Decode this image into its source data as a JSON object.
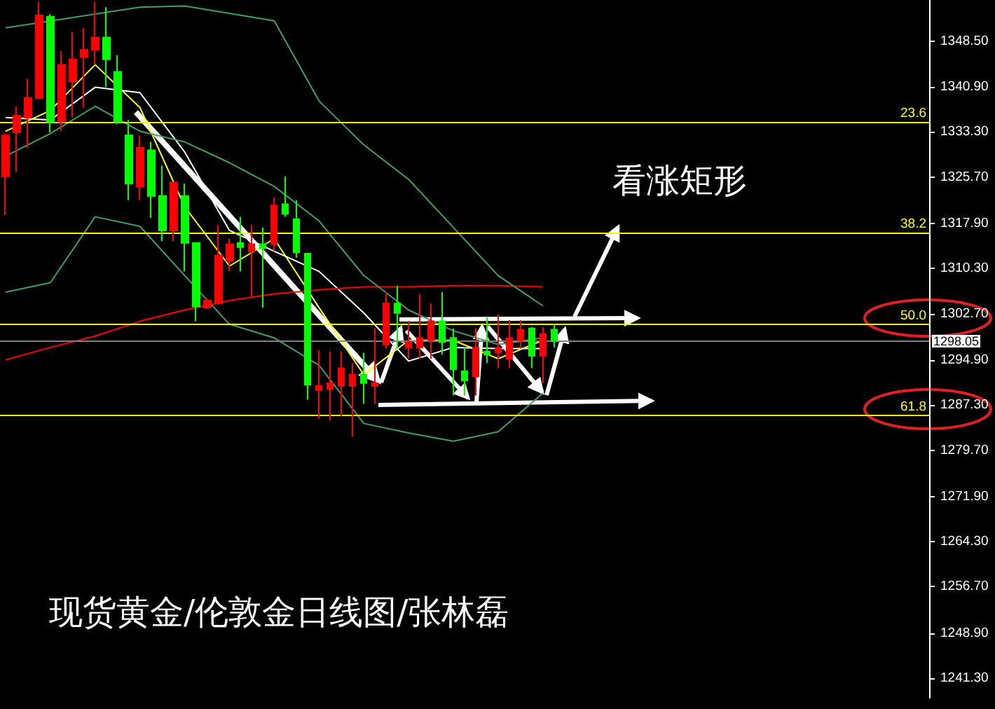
{
  "chart_data": {
    "type": "candlestick",
    "title": "现货黄金/伦敦金日线图/张林磊",
    "annotations": [
      "看涨矩形",
      {
        "text": "23.6",
        "y": 1335.0
      },
      {
        "text": "38.2",
        "y": 1316.3
      },
      {
        "text": "50.0",
        "y": 1300.9
      },
      {
        "text": "61.8",
        "y": 1285.6
      }
    ],
    "categories": [
      null,
      null,
      null,
      null,
      null,
      null,
      null,
      null,
      null,
      null,
      null,
      null,
      null,
      null,
      null,
      null,
      null,
      null,
      null,
      null,
      null,
      null,
      null,
      null,
      null,
      null,
      null,
      null,
      null,
      null,
      null,
      null,
      null,
      null,
      null,
      null,
      null,
      null,
      null,
      null,
      null,
      null,
      null,
      null,
      null,
      null,
      null,
      null,
      null,
      null,
      null,
      null,
      null,
      null,
      null,
      null,
      null,
      null,
      null,
      null,
      null,
      null,
      null,
      null,
      null,
      null,
      null,
      null,
      null,
      null,
      null,
      null,
      null,
      null,
      null,
      null,
      null,
      null,
      null,
      null,
      null,
      null,
      null
    ],
    "ohlc": [
      [
        1325.8,
        1333.0,
        1319.3,
        1332.7
      ],
      [
        1333.2,
        1337.6,
        1326.5,
        1336.0
      ],
      [
        1335.7,
        1342.2,
        1330.6,
        1339.0
      ],
      [
        1339.0,
        1355.2,
        1338.8,
        1352.9
      ],
      [
        1352.7,
        1353.1,
        1333.2,
        1335.0
      ],
      [
        1335.0,
        1346.9,
        1333.4,
        1344.6
      ],
      [
        1341.8,
        1350.1,
        1335.7,
        1345.5
      ],
      [
        1345.9,
        1350.8,
        1337.4,
        1347.1
      ],
      [
        1347.1,
        1355.2,
        1344.6,
        1349.2
      ],
      [
        1349.2,
        1354.3,
        1340.8,
        1345.5
      ],
      [
        1343.4,
        1346.2,
        1334.6,
        1335.0
      ],
      [
        1332.7,
        1335.3,
        1321.8,
        1324.6
      ],
      [
        1324.1,
        1332.7,
        1321.8,
        1330.6
      ],
      [
        1330.2,
        1331.6,
        1318.8,
        1322.5
      ],
      [
        1322.5,
        1327.6,
        1314.9,
        1316.7
      ],
      [
        1316.7,
        1324.8,
        1314.9,
        1324.8
      ],
      [
        1322.5,
        1324.6,
        1309.8,
        1314.6
      ],
      [
        1314.6,
        1314.6,
        1301.4,
        1303.9
      ],
      [
        1303.7,
        1305.1,
        1303.5,
        1304.9
      ],
      [
        1304.4,
        1317.6,
        1304.4,
        1312.5
      ],
      [
        1311.6,
        1315.3,
        1309.8,
        1314.4
      ],
      [
        1314.6,
        1319.0,
        1309.8,
        1313.9
      ],
      [
        1313.2,
        1317.6,
        1305.6,
        1314.4
      ],
      [
        1314.4,
        1317.2,
        1303.7,
        1313.7
      ],
      [
        1314.4,
        1322.3,
        1313.2,
        1320.9
      ],
      [
        1321.1,
        1325.8,
        1319.0,
        1319.5
      ],
      [
        1318.6,
        1321.8,
        1312.1,
        1313.0
      ],
      [
        1312.8,
        1312.8,
        1288.2,
        1290.7
      ],
      [
        1289.8,
        1296.5,
        1285.0,
        1290.5
      ],
      [
        1290.0,
        1296.3,
        1284.7,
        1291.0
      ],
      [
        1290.5,
        1296.3,
        1285.4,
        1293.5
      ],
      [
        1290.5,
        1294.4,
        1282.0,
        1292.4
      ],
      [
        1292.4,
        1296.1,
        1287.5,
        1291.0
      ],
      [
        1290.5,
        1300.2,
        1287.5,
        1291.0
      ],
      [
        1297.5,
        1306.3,
        1296.8,
        1304.4
      ],
      [
        1304.4,
        1307.4,
        1296.8,
        1302.8
      ],
      [
        1297.0,
        1301.4,
        1295.1,
        1297.9
      ],
      [
        1297.0,
        1306.0,
        1295.1,
        1298.6
      ],
      [
        1298.2,
        1304.4,
        1295.1,
        1301.4
      ],
      [
        1301.4,
        1306.3,
        1295.8,
        1297.9
      ],
      [
        1298.6,
        1300.2,
        1288.9,
        1293.3
      ],
      [
        1293.0,
        1297.0,
        1288.9,
        1291.4
      ],
      [
        1292.1,
        1300.2,
        1288.9,
        1297.0
      ],
      [
        1296.3,
        1302.1,
        1294.4,
        1295.8
      ],
      [
        1296.1,
        1302.6,
        1293.5,
        1296.8
      ],
      [
        1295.1,
        1301.6,
        1293.5,
        1298.6
      ],
      [
        1298.2,
        1301.6,
        1296.8,
        1300.0
      ],
      [
        1300.2,
        1300.4,
        1293.5,
        1295.6
      ],
      [
        1295.6,
        1300.4,
        1291.0,
        1299.3
      ],
      [
        1300.0,
        1300.9,
        1297.0,
        1298.1
      ],
      null,
      null,
      null,
      null,
      null,
      null,
      null,
      null,
      null,
      null,
      null,
      null,
      null,
      null,
      null,
      null,
      null,
      null,
      null,
      null,
      null,
      null,
      null,
      null,
      null,
      null,
      null,
      null,
      null,
      null,
      null,
      null,
      null
    ],
    "colors": [
      "#ff0000",
      "#ff0000",
      "#ff0000",
      "#ff0000",
      "#00ff00",
      "#ff0000",
      "#ff0000",
      "#ff0000",
      "#ff0000",
      "#00ff00",
      "#00ff00",
      "#00ff00",
      "#ff0000",
      "#00ff00",
      "#00ff00",
      "#ff0000",
      "#00ff00",
      "#00ff00",
      "#ff0000",
      "#ff0000",
      "#ff0000",
      "#00ff00",
      "#ff0000",
      "#00ff00",
      "#ff0000",
      "#00ff00",
      "#00ff00",
      "#00ff00",
      "#ff0000",
      "#ff0000",
      "#ff0000",
      "#ff0000",
      "#00ff00",
      "#ff0000",
      "#ff0000",
      "#00ff00",
      "#ff0000",
      "#ff0000",
      "#ff0000",
      "#00ff00",
      "#00ff00",
      "#00ff00",
      "#ff0000",
      "#00ff00",
      "#ff0000",
      "#ff0000",
      "#ff0000",
      "#00ff00",
      "#ff0000",
      "#00ff00",
      null,
      null,
      null,
      null,
      null,
      null,
      null,
      null,
      null,
      null,
      null,
      null,
      null,
      null,
      null,
      null,
      null,
      null,
      null,
      null,
      null,
      null,
      null,
      null,
      null,
      null,
      null,
      null,
      null,
      null,
      null,
      null,
      null
    ],
    "series": [
      {
        "type": "line",
        "color": "#ffff00",
        "values": [
          1333.4,
          null,
          null,
          null,
          1336.9,
          null,
          null,
          null,
          1344.6,
          null,
          null,
          null,
          1337.4,
          null,
          null,
          null,
          1320.7,
          null,
          null,
          null,
          1310.7,
          null,
          null,
          null,
          1315.3,
          null,
          null,
          null,
          1303.7,
          null,
          null,
          null,
          1292.4,
          null,
          null,
          null,
          1298.2,
          null,
          null,
          null,
          1298.2,
          null,
          null,
          null,
          1295.1,
          null,
          null,
          null,
          1298.2,
          null,
          null,
          null,
          null,
          null,
          null,
          null,
          null,
          null,
          null,
          null,
          null,
          null,
          null,
          null,
          null,
          null,
          null,
          null,
          null,
          null,
          null,
          null,
          null,
          null,
          null,
          null,
          null,
          null,
          null,
          null,
          null,
          null,
          null
        ]
      },
      {
        "type": "line",
        "color": "#ffffff",
        "values": [
          1335.7,
          null,
          null,
          null,
          1335.3,
          null,
          null,
          null,
          1340.8,
          null,
          null,
          null,
          1339.9,
          null,
          null,
          null,
          1329.9,
          null,
          null,
          null,
          1316.7,
          null,
          null,
          null,
          1313.2,
          null,
          null,
          null,
          1309.8,
          null,
          null,
          null,
          1302.8,
          null,
          null,
          null,
          1294.7,
          null,
          null,
          null,
          1297.0,
          null,
          null,
          null,
          1296.8,
          null,
          null,
          null,
          1296.8,
          null,
          null,
          null,
          null,
          null,
          null,
          null,
          null,
          null,
          null,
          null,
          null,
          null,
          null,
          null,
          null,
          null,
          null,
          null,
          null,
          null,
          null,
          null,
          null,
          null,
          null,
          null,
          null,
          null,
          null,
          null,
          null,
          null,
          null
        ]
      },
      {
        "type": "line",
        "color": "#ff0000",
        "values": [
          1294.9,
          null,
          null,
          null,
          1297.0,
          null,
          null,
          null,
          1298.9,
          null,
          null,
          null,
          1301.4,
          null,
          null,
          null,
          1303.3,
          null,
          null,
          null,
          1304.9,
          null,
          null,
          null,
          1306.0,
          null,
          null,
          null,
          1306.7,
          null,
          null,
          null,
          1307.2,
          null,
          null,
          null,
          1307.2,
          null,
          null,
          null,
          1307.4,
          null,
          null,
          null,
          1307.4,
          null,
          null,
          null,
          1307.2,
          null,
          null,
          null,
          null,
          null,
          null,
          null,
          null,
          null,
          null,
          null,
          null,
          null,
          null,
          null,
          null,
          null,
          null,
          null,
          null,
          null,
          null,
          null,
          null,
          null,
          null,
          null,
          null,
          null,
          null,
          null,
          null,
          null,
          null
        ]
      },
      {
        "type": "line",
        "color": "#40a060",
        "values": [
          1350.8,
          null,
          null,
          null,
          null,
          null,
          null,
          null,
          null,
          null,
          null,
          null,
          1354.3,
          null,
          null,
          null,
          1354.5,
          null,
          null,
          null,
          null,
          null,
          null,
          null,
          1352.0,
          null,
          null,
          null,
          1338.5,
          null,
          null,
          null,
          1331.1,
          null,
          null,
          null,
          1325.3,
          null,
          null,
          null,
          1317.2,
          null,
          null,
          null,
          1309.1,
          null,
          null,
          null,
          1304.0,
          null,
          null,
          null,
          null,
          null,
          null,
          null,
          null,
          null,
          null,
          null,
          null,
          null,
          null,
          null,
          null,
          null,
          null,
          null,
          null,
          null,
          null,
          null,
          null,
          null,
          null,
          null,
          null,
          null,
          null,
          null,
          null,
          null,
          null
        ]
      },
      {
        "type": "line",
        "color": "#40a060",
        "values": [
          1329.2,
          null,
          null,
          null,
          1333.0,
          null,
          null,
          null,
          1337.6,
          null,
          null,
          null,
          1333.4,
          null,
          null,
          null,
          1331.6,
          null,
          null,
          null,
          1328.1,
          null,
          null,
          null,
          1324.1,
          null,
          null,
          null,
          1318.3,
          null,
          null,
          null,
          1309.1,
          null,
          null,
          null,
          1303.3,
          null,
          null,
          null,
          1299.8,
          null,
          null,
          null,
          1297.5,
          null,
          null,
          null,
          1298.6,
          null,
          null,
          null,
          null,
          null,
          null,
          null,
          null,
          null,
          null,
          null,
          null,
          null,
          null,
          null,
          null,
          null,
          null,
          null,
          null,
          null,
          null,
          null,
          null,
          null,
          null,
          null,
          null,
          null,
          null,
          null,
          null,
          null,
          null
        ]
      },
      {
        "type": "line",
        "color": "#40a060",
        "values": [
          1306.3,
          null,
          null,
          null,
          1307.9,
          null,
          null,
          null,
          1319.0,
          null,
          null,
          null,
          1317.4,
          null,
          null,
          null,
          1309.1,
          null,
          null,
          null,
          1300.9,
          null,
          null,
          null,
          1298.6,
          null,
          null,
          null,
          1294.0,
          null,
          null,
          null,
          1284.2,
          null,
          null,
          null,
          1282.6,
          null,
          null,
          null,
          1281.2,
          null,
          null,
          null,
          1282.8,
          null,
          null,
          null,
          1289.3,
          null,
          null,
          null,
          null,
          null,
          null,
          null,
          null,
          null,
          null,
          null,
          null,
          null,
          null,
          null,
          null,
          null,
          null,
          null,
          null,
          null,
          null,
          null,
          null,
          null,
          null,
          null,
          null,
          null,
          null,
          null,
          null,
          null,
          null
        ]
      }
    ],
    "ylim": [
      1238,
      1355.5
    ],
    "yticks": [
      {
        "value": 1348.5,
        "label": "1348.50"
      },
      {
        "value": 1340.9,
        "label": "1340.90"
      },
      {
        "value": 1333.3,
        "label": "1333.30"
      },
      {
        "value": 1325.7,
        "label": "1325.70"
      },
      {
        "value": 1317.9,
        "label": "1317.90"
      },
      {
        "value": 1310.3,
        "label": "1310.30"
      },
      {
        "value": 1302.7,
        "label": "1302.70"
      },
      {
        "value": 1294.9,
        "label": "1294.90"
      },
      {
        "value": 1287.3,
        "label": "1287.30"
      },
      {
        "value": 1279.7,
        "label": "1279.70"
      },
      {
        "value": 1271.9,
        "label": "1271.90"
      },
      {
        "value": 1264.3,
        "label": "1264.30"
      },
      {
        "value": 1256.7,
        "label": "1256.70"
      },
      {
        "value": 1248.9,
        "label": "1248.90"
      },
      {
        "value": 1241.3,
        "label": "1241.30"
      }
    ],
    "ref_lines": [
      {
        "axis": "y",
        "value": 1335.0,
        "color": "#ffff00"
      },
      {
        "axis": "y",
        "value": 1316.3,
        "color": "#ffff00"
      },
      {
        "axis": "y",
        "value": 1300.9,
        "color": "#ffff00"
      },
      {
        "axis": "y",
        "value": 1285.6,
        "color": "#ffff00"
      },
      {
        "axis": "y",
        "value": 1298.05,
        "label": "1298.05",
        "color": "#808080"
      }
    ],
    "marker": "none",
    "grid": false
  }
}
